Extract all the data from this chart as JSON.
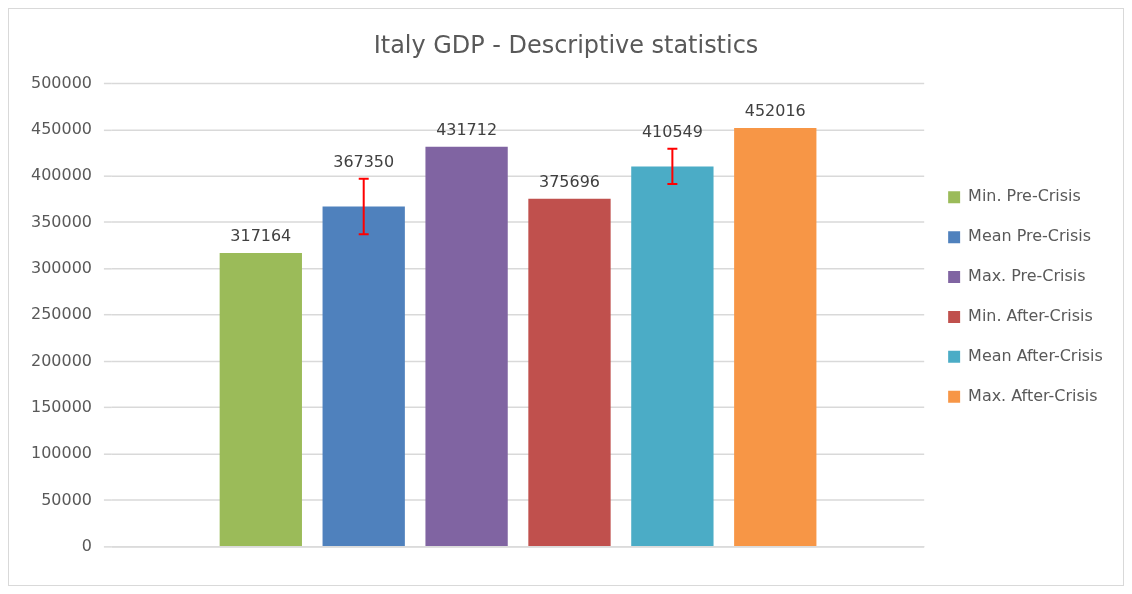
{
  "chart_data": {
    "type": "bar",
    "title": "Italy GDP - Descriptive statistics",
    "categories": [
      null
    ],
    "series": [
      {
        "name": "Min. Pre-Crisis",
        "color": "#9bbb59",
        "values": [
          317164
        ]
      },
      {
        "name": "Mean Pre-Crisis",
        "color": "#4f81bd",
        "values": [
          367350
        ],
        "errors": [
          30000
        ]
      },
      {
        "name": "Max. Pre-Crisis",
        "color": "#8064a2",
        "values": [
          431712
        ]
      },
      {
        "name": "Min. After-Crisis",
        "color": "#c0504d",
        "values": [
          375696
        ]
      },
      {
        "name": "Mean After-Crisis",
        "color": "#4bacc6",
        "values": [
          410549
        ],
        "errors": [
          19000
        ]
      },
      {
        "name": "Max. After-Crisis",
        "color": "#f79646",
        "values": [
          452016
        ]
      }
    ],
    "ylim": [
      0,
      500000
    ],
    "yticks": [
      0,
      50000,
      100000,
      150000,
      200000,
      250000,
      300000,
      350000,
      400000,
      450000,
      500000
    ],
    "grid": "y",
    "legend": "right",
    "data_labels": true
  }
}
